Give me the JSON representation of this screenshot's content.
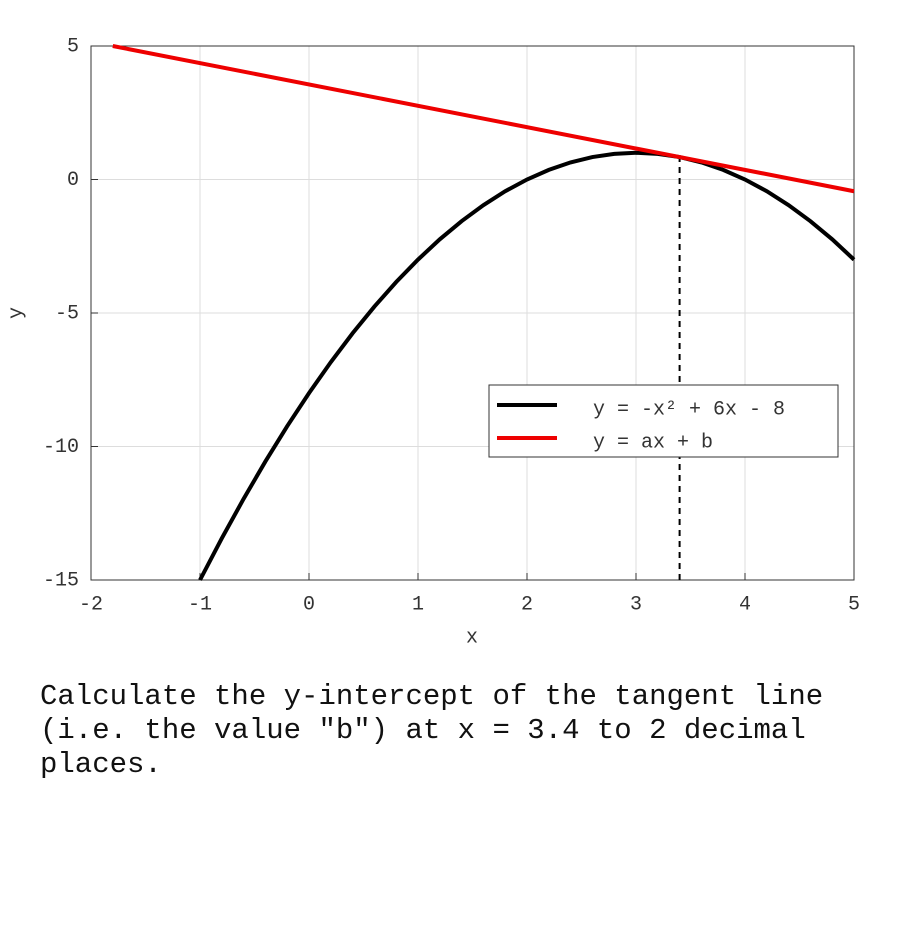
{
  "chart_data": {
    "type": "line",
    "x_label": "x",
    "y_label": "y",
    "xlim": [
      -2,
      5
    ],
    "ylim": [
      -15,
      5
    ],
    "xticks": [
      -2,
      -1,
      0,
      1,
      2,
      3,
      4,
      5
    ],
    "yticks": [
      -15,
      -10,
      -5,
      0,
      5
    ],
    "grid": true,
    "legend": "right",
    "series": [
      {
        "name": "y = -x² + 6x - 8",
        "color": "#000000",
        "x": [
          -1,
          -0.8,
          -0.6,
          -0.4,
          -0.2,
          0,
          0.2,
          0.4,
          0.6,
          0.8,
          1,
          1.2,
          1.4,
          1.6,
          1.8,
          2,
          2.2,
          2.4,
          2.6,
          2.8,
          3,
          3.2,
          3.4,
          3.6,
          3.8,
          4,
          4.2,
          4.4,
          4.6,
          4.8,
          5
        ],
        "values": [
          -15,
          -13.44,
          -11.96,
          -10.56,
          -9.24,
          -8,
          -6.84,
          -5.76,
          -4.76,
          -3.84,
          -3,
          -2.24,
          -1.56,
          -0.96,
          -0.44,
          0,
          0.36,
          0.64,
          0.84,
          0.96,
          1,
          0.96,
          0.84,
          0.64,
          0.36,
          0,
          -0.44,
          -0.96,
          -1.56,
          -2.24,
          -3
        ]
      },
      {
        "name": "y = ax + b",
        "color": "#ee0000",
        "x": [
          -1.8,
          5
        ],
        "values": [
          5,
          -0.44
        ]
      }
    ],
    "vline": {
      "x": 3.4,
      "values": [
        -15,
        0.84
      ],
      "color": "#000000"
    }
  },
  "question": "Calculate the y-intercept of the tangent line (i.e. the value \"b\") at x = 3.4 to 2 decimal places."
}
